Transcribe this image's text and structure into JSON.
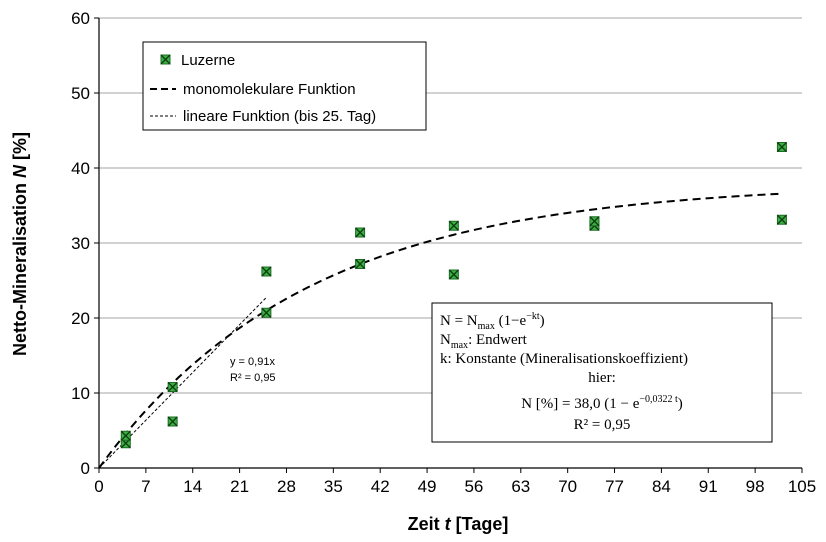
{
  "chart_data": {
    "type": "scatter",
    "xlabel": {
      "main": "Zeit ",
      "var": "t",
      "unit": " [Tage]"
    },
    "ylabel": {
      "main": "Netto-Mineralisation ",
      "var": "N",
      "unit": " [%]"
    },
    "xlim": [
      0,
      105
    ],
    "ylim": [
      0,
      60
    ],
    "xticks": [
      0,
      7,
      14,
      21,
      28,
      35,
      42,
      49,
      56,
      63,
      70,
      77,
      84,
      91,
      98,
      105
    ],
    "yticks": [
      0,
      10,
      20,
      30,
      40,
      50,
      60
    ],
    "grid": "horizontal",
    "legend_position": "top-left",
    "marker_color": "#3cb043",
    "series": [
      {
        "name": "Luzerne",
        "kind": "points",
        "points": [
          [
            4,
            3.3
          ],
          [
            4,
            4.3
          ],
          [
            11,
            6.2
          ],
          [
            11,
            10.8
          ],
          [
            25,
            20.7
          ],
          [
            25,
            26.2
          ],
          [
            39,
            27.2
          ],
          [
            39,
            31.4
          ],
          [
            53,
            25.8
          ],
          [
            53,
            32.3
          ],
          [
            74,
            32.3
          ],
          [
            74,
            32.9
          ],
          [
            102,
            33.1
          ],
          [
            102,
            42.8
          ]
        ]
      },
      {
        "name": "monomolekulare Funktion",
        "kind": "curve",
        "nmax": 38.0,
        "k": 0.0322,
        "x_range": [
          0,
          102
        ]
      },
      {
        "name": "lineare Funktion (bis 25. Tag)",
        "kind": "line",
        "slope": 0.91,
        "x_range": [
          0,
          25
        ]
      }
    ],
    "linear_annotation": {
      "eq": "y = 0,91x",
      "r2": "R² = 0,95"
    },
    "formula_box": {
      "line1": {
        "a": "N = N",
        "sub": "max",
        "b": " (1−e",
        "sup": "−kt",
        "c": ")"
      },
      "line2": {
        "a": "N",
        "sub": "max",
        "b": ": Endwert"
      },
      "line3": "k: Konstante (Mineralisationskoeffizient)",
      "line4": "hier:",
      "line5": {
        "a": "N [%] = 38,0 (1 − e",
        "sup": "−0,0322 t",
        "c": ")"
      },
      "line6": "R² = 0,95"
    }
  }
}
